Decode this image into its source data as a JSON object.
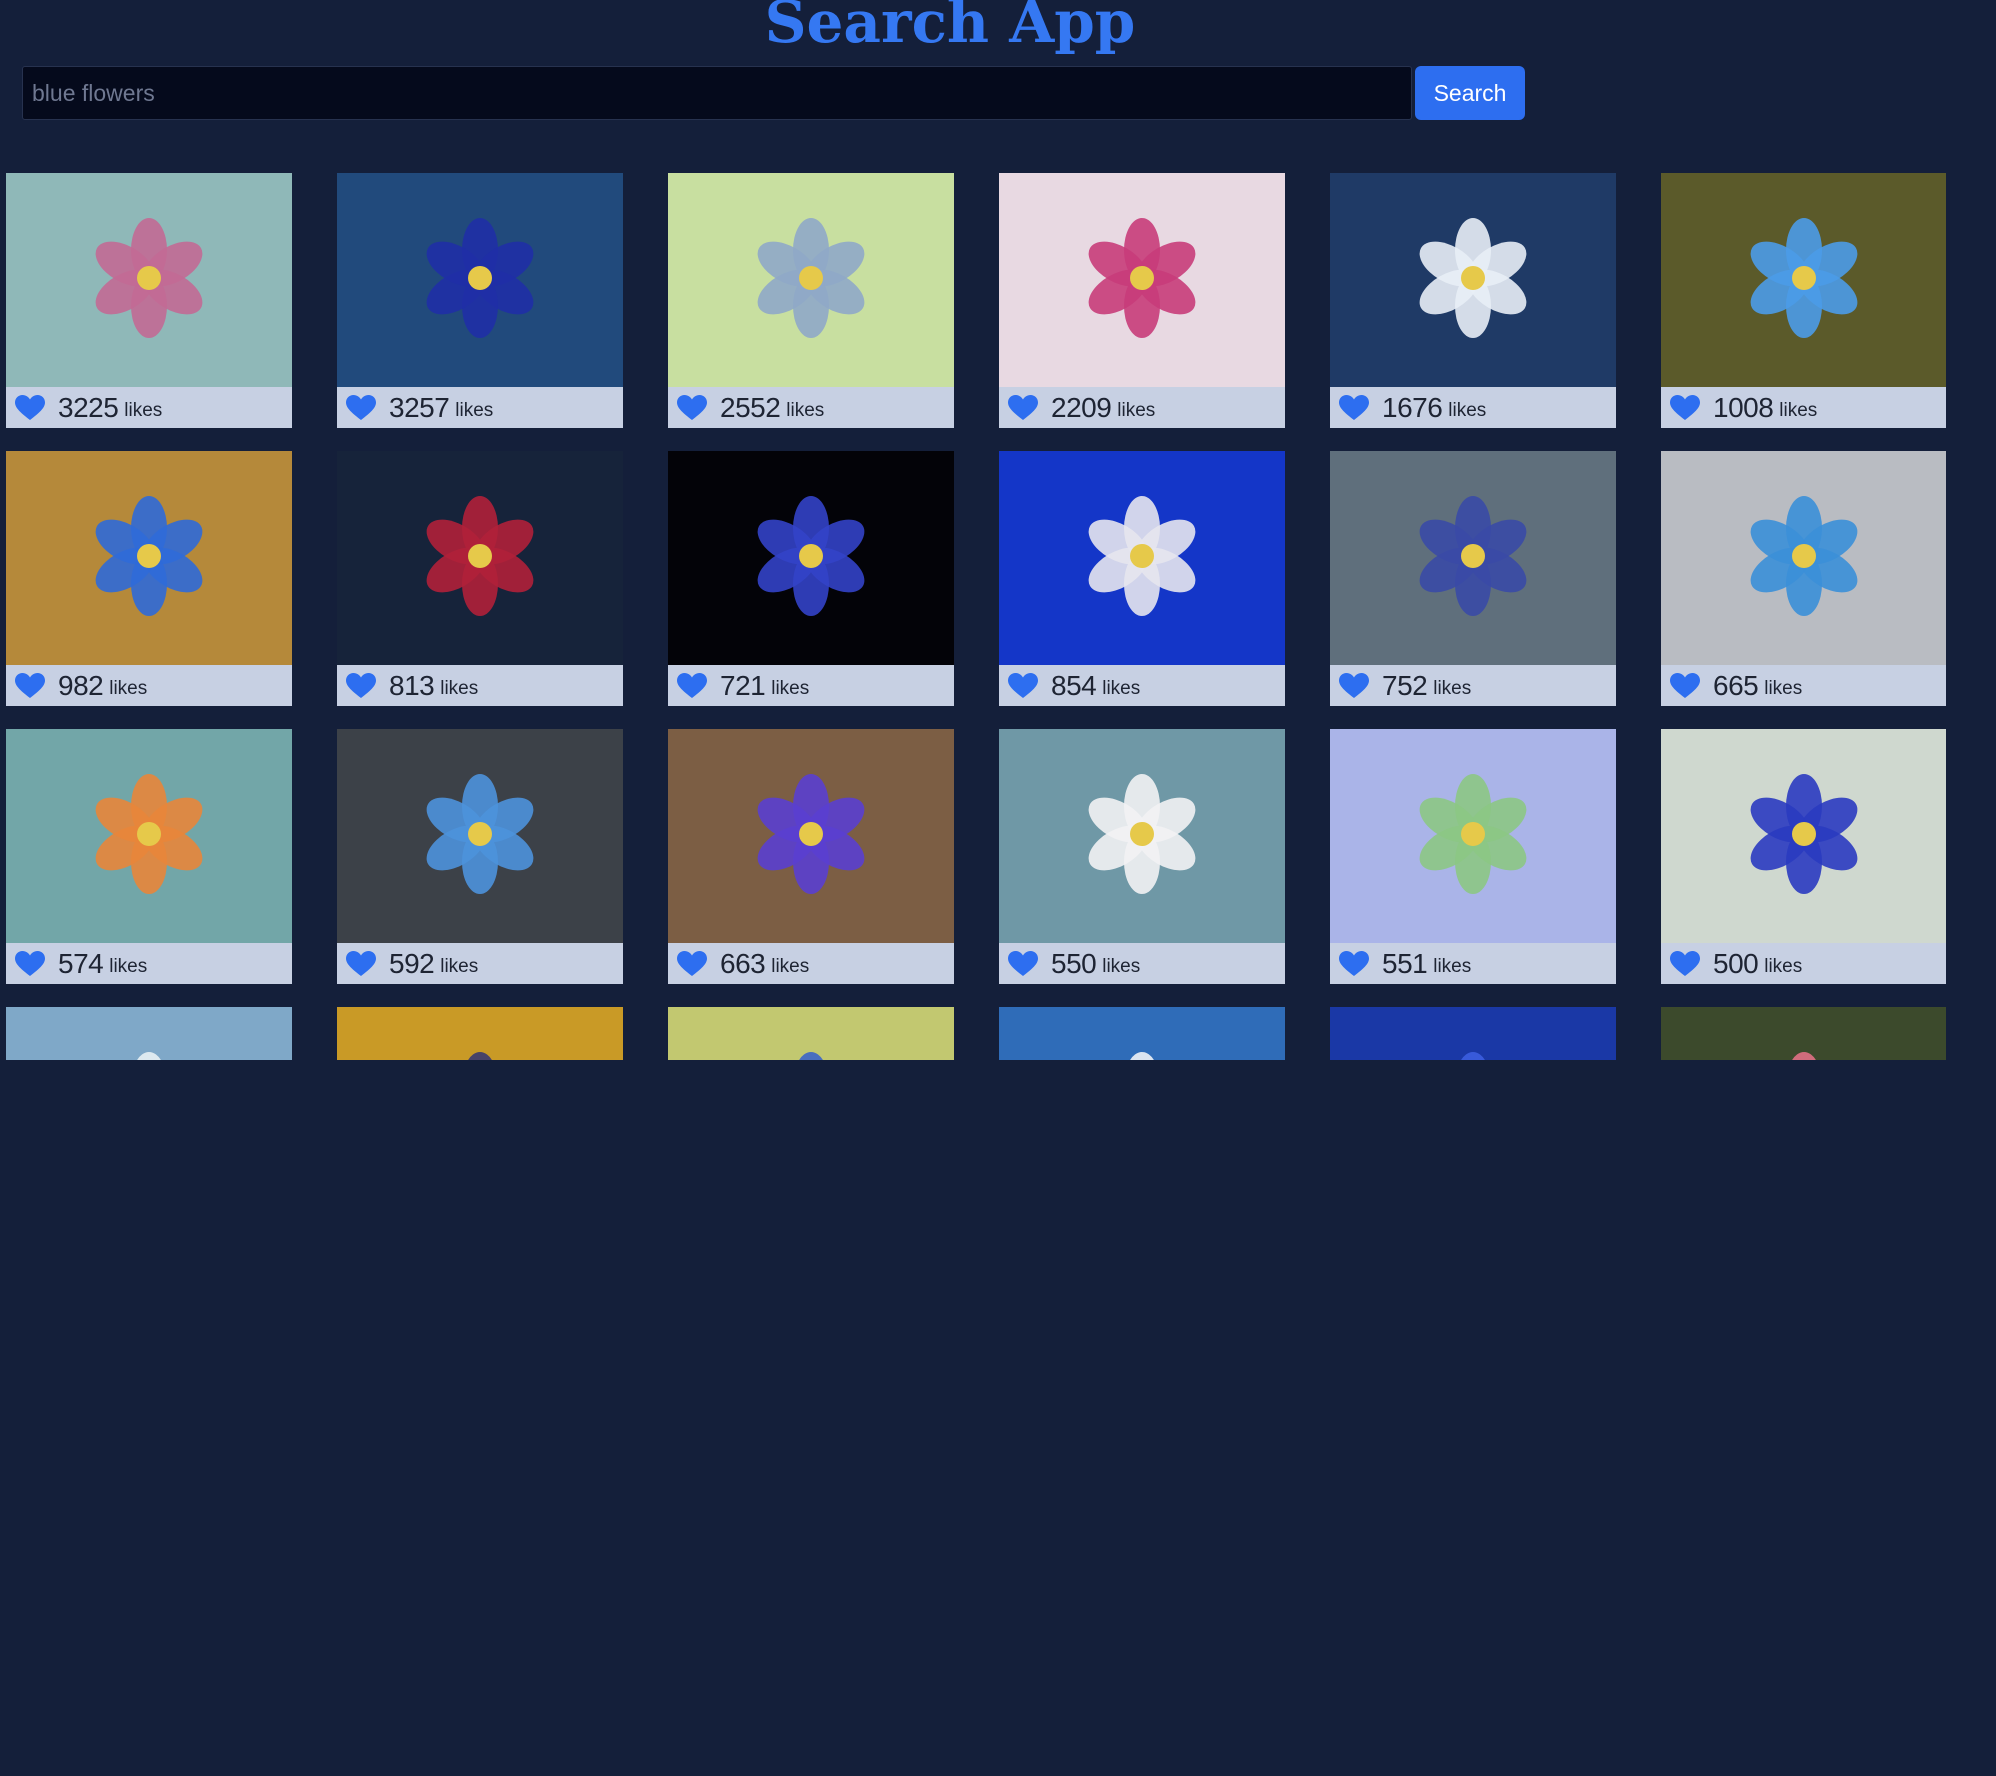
{
  "header": {
    "title": "Search App"
  },
  "search": {
    "value": "blue flowers",
    "button_label": "Search"
  },
  "results": [
    {
      "likes": "3225",
      "unit": "likes",
      "bg": "#8fb8b8",
      "accent": "#c26a95"
    },
    {
      "likes": "3257",
      "unit": "likes",
      "bg": "#214a7c",
      "accent": "#1f2fa6"
    },
    {
      "likes": "2552",
      "unit": "likes",
      "bg": "#c8dfa0",
      "accent": "#8fa9c8"
    },
    {
      "likes": "2209",
      "unit": "likes",
      "bg": "#e8d9e2",
      "accent": "#c83c7a"
    },
    {
      "likes": "1676",
      "unit": "likes",
      "bg": "#1f3a66",
      "accent": "#e8eef6"
    },
    {
      "likes": "1008",
      "unit": "likes",
      "bg": "#5b5a2a",
      "accent": "#4b9be8"
    },
    {
      "likes": "982",
      "unit": "likes",
      "bg": "#b5893a",
      "accent": "#2f6ad8"
    },
    {
      "likes": "813",
      "unit": "likes",
      "bg": "#16233a",
      "accent": "#b0203a"
    },
    {
      "likes": "721",
      "unit": "likes",
      "bg": "#030308",
      "accent": "#3343c8"
    },
    {
      "likes": "854",
      "unit": "likes",
      "bg": "#1436c8",
      "accent": "#e6e6ee"
    },
    {
      "likes": "752",
      "unit": "likes",
      "bg": "#5f6f7c",
      "accent": "#3a4aa6"
    },
    {
      "likes": "665",
      "unit": "likes",
      "bg": "#b9bcc2",
      "accent": "#3b8fd8"
    },
    {
      "likes": "574",
      "unit": "likes",
      "bg": "#72a6a8",
      "accent": "#e8863a"
    },
    {
      "likes": "592",
      "unit": "likes",
      "bg": "#3c4148",
      "accent": "#4d92dc"
    },
    {
      "likes": "663",
      "unit": "likes",
      "bg": "#7c5e44",
      "accent": "#5a3fd0"
    },
    {
      "likes": "550",
      "unit": "likes",
      "bg": "#6f98a6",
      "accent": "#f2f2f4"
    },
    {
      "likes": "551",
      "unit": "likes",
      "bg": "#aab4e8",
      "accent": "#8cc784"
    },
    {
      "likes": "500",
      "unit": "likes",
      "bg": "#cfd8cf",
      "accent": "#2a3bc0"
    },
    {
      "likes": "",
      "unit": "",
      "bg": "#7fa8c8",
      "accent": "#e8f0f4"
    },
    {
      "likes": "",
      "unit": "",
      "bg": "#c99a26",
      "accent": "#3a3a70"
    },
    {
      "likes": "",
      "unit": "",
      "bg": "#c2c870",
      "accent": "#3c64c8"
    },
    {
      "likes": "",
      "unit": "",
      "bg": "#2f6cb8",
      "accent": "#eef2f6"
    },
    {
      "likes": "",
      "unit": "",
      "bg": "#1a38a6",
      "accent": "#3c5ee0"
    },
    {
      "likes": "",
      "unit": "",
      "bg": "#3c4a2c",
      "accent": "#e07085"
    }
  ],
  "icons": {
    "heart": "heart-icon",
    "heart_color": "#2d6ef0"
  }
}
